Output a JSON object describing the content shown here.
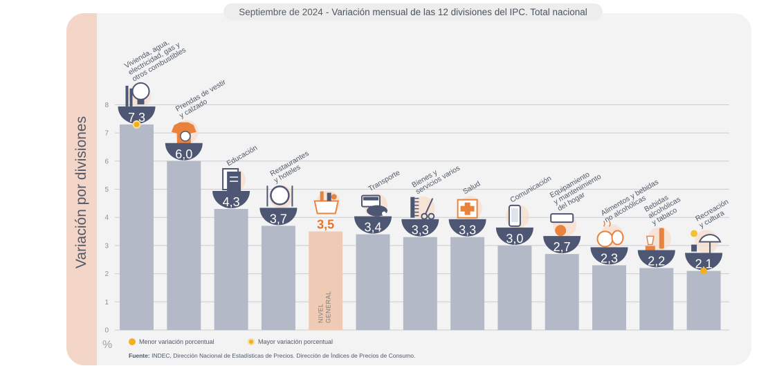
{
  "title": {
    "date": "Septiembre de 2024",
    "separator": "-",
    "text": "Variación mensual de las 12 divisiones del IPC. Total nacional"
  },
  "y_axis_label": "Variación por divisiones",
  "unit_symbol": "%",
  "legend": {
    "min_label": "Menor variación porcentual",
    "max_label": "Mayor variación porcentual"
  },
  "source": {
    "label": "Fuente:",
    "text": "INDEC, Dirección Nacional de Estadísticas de Precios. Dirección de Índices de Precios de Consumo."
  },
  "colors": {
    "bar": "#b3b9c6",
    "bar_general": "#efcab4",
    "badge": "#4d5672",
    "badge_text_general": "#e8742b",
    "marker": "#f2b01e",
    "grid": "#c9ccd2",
    "icon_orange": "#e9823c",
    "icon_blue": "#4d5672",
    "icon_peach": "#f7dcc9"
  },
  "chart_data": {
    "type": "bar",
    "title": "Septiembre de 2024 - Variación mensual de las 12 divisiones del IPC. Total nacional",
    "ylabel": "Variación por divisiones",
    "yunit": "%",
    "ylim": [
      0,
      8
    ],
    "yticks": [
      0,
      1,
      2,
      3,
      4,
      5,
      6,
      7,
      8
    ],
    "grid": true,
    "categories": [
      "Vivienda, agua, electricidad, gas y otros combustibles",
      "Prendas de vestir y calzado",
      "Educación",
      "Restaurantes y hoteles",
      "Nivel general",
      "Transporte",
      "Bienes y servicios varios",
      "Salud",
      "Comunicación",
      "Equipamiento y mantenimiento del hogar",
      "Alimentos y bebidas no alcohólicas",
      "Bebidas alcohólicas y tabaco",
      "Recreación y cultura"
    ],
    "values": [
      7.3,
      6.0,
      4.3,
      3.7,
      3.5,
      3.4,
      3.3,
      3.3,
      3.0,
      2.7,
      2.3,
      2.2,
      2.1
    ],
    "value_labels": [
      "7,3",
      "6,0",
      "4,3",
      "3,7",
      "3,5",
      "3,4",
      "3,3",
      "3,3",
      "3,0",
      "2,7",
      "2,3",
      "2,2",
      "2,1"
    ],
    "label_lines": [
      [
        "Vivienda, agua,",
        "electricidad, gas y",
        "otros combustibles"
      ],
      [
        "Prendas de vestir",
        "y calzado"
      ],
      [
        "Educación"
      ],
      [
        "Restaurantes",
        "y hoteles"
      ],
      [],
      [
        "Transporte"
      ],
      [
        "Bienes y",
        "servicios varios"
      ],
      [
        "Salud"
      ],
      [
        "Comunicación"
      ],
      [
        "Equipamiento",
        "y mantenimiento",
        "del hogar"
      ],
      [
        "Alimentos y bebidas",
        "no alcohólicas"
      ],
      [
        "Bebidas",
        "alcohólicas",
        "y tabaco"
      ],
      [
        "Recreación",
        "y cultura"
      ]
    ],
    "general_label_lines": [
      "NIVEL",
      "GENERAL"
    ],
    "general_index": 4,
    "max_index": 0,
    "min_index": 12,
    "icons": [
      "bulb-icon",
      "tshirt-icon",
      "book-icon",
      "plate-cutlery-icon",
      "shopping-bag-icon",
      "sube-card-icon",
      "comb-scissors-icon",
      "medical-kit-icon",
      "phone-icon",
      "air-conditioner-icon",
      "food-icon",
      "wine-bottle-icon",
      "umbrella-icon"
    ]
  }
}
